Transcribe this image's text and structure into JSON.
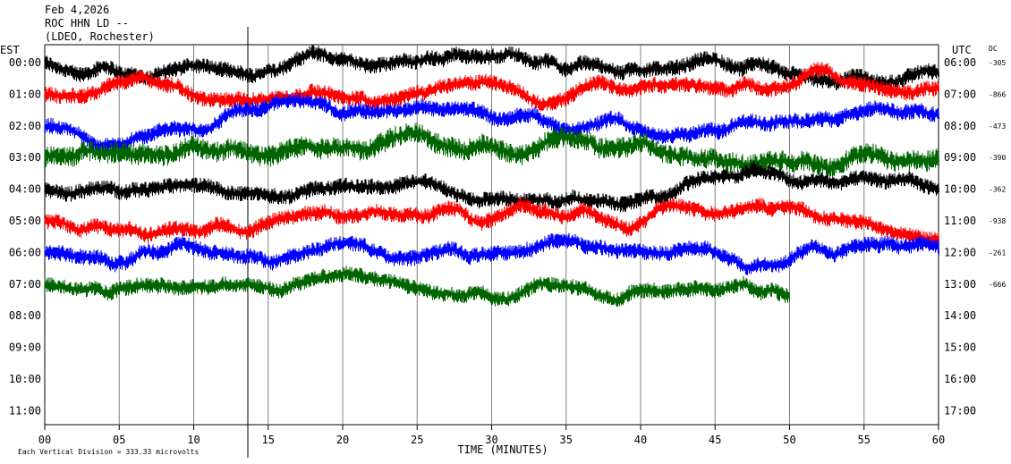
{
  "header": {
    "date": "Feb 4,2026",
    "station": "ROC HHN LD --",
    "network": "(LDEO, Rochester)"
  },
  "chart_data": {
    "type": "line",
    "title": "",
    "left_axis_label": "EST",
    "right_axis_label": "UTC",
    "dc_label": "DC",
    "xlabel": "TIME (MINUTES)",
    "xlim": [
      0,
      60
    ],
    "x_ticks": [
      "00",
      "05",
      "10",
      "15",
      "20",
      "25",
      "30",
      "35",
      "40",
      "45",
      "50",
      "55",
      "60"
    ],
    "rows_est": [
      "00:00",
      "01:00",
      "02:00",
      "03:00",
      "04:00",
      "05:00",
      "06:00",
      "07:00",
      "08:00",
      "09:00",
      "10:00",
      "11:00"
    ],
    "rows_utc": [
      "06:00",
      "07:00",
      "08:00",
      "09:00",
      "10:00",
      "11:00",
      "12:00",
      "13:00",
      "14:00",
      "15:00",
      "16:00",
      "17:00"
    ],
    "dc_offsets": [
      "-305",
      "-866",
      "-473",
      "-390",
      "-362",
      "-938",
      "-261",
      "-666"
    ],
    "trace_colors": [
      "#000000",
      "#ff0000",
      "#0000ff",
      "#006400",
      "#000000",
      "#ff0000",
      "#0000ff",
      "#006400"
    ],
    "last_trace_end_minute": 50,
    "footer": "Each Vertical Division = 333.33 microvolts",
    "grid": true
  }
}
